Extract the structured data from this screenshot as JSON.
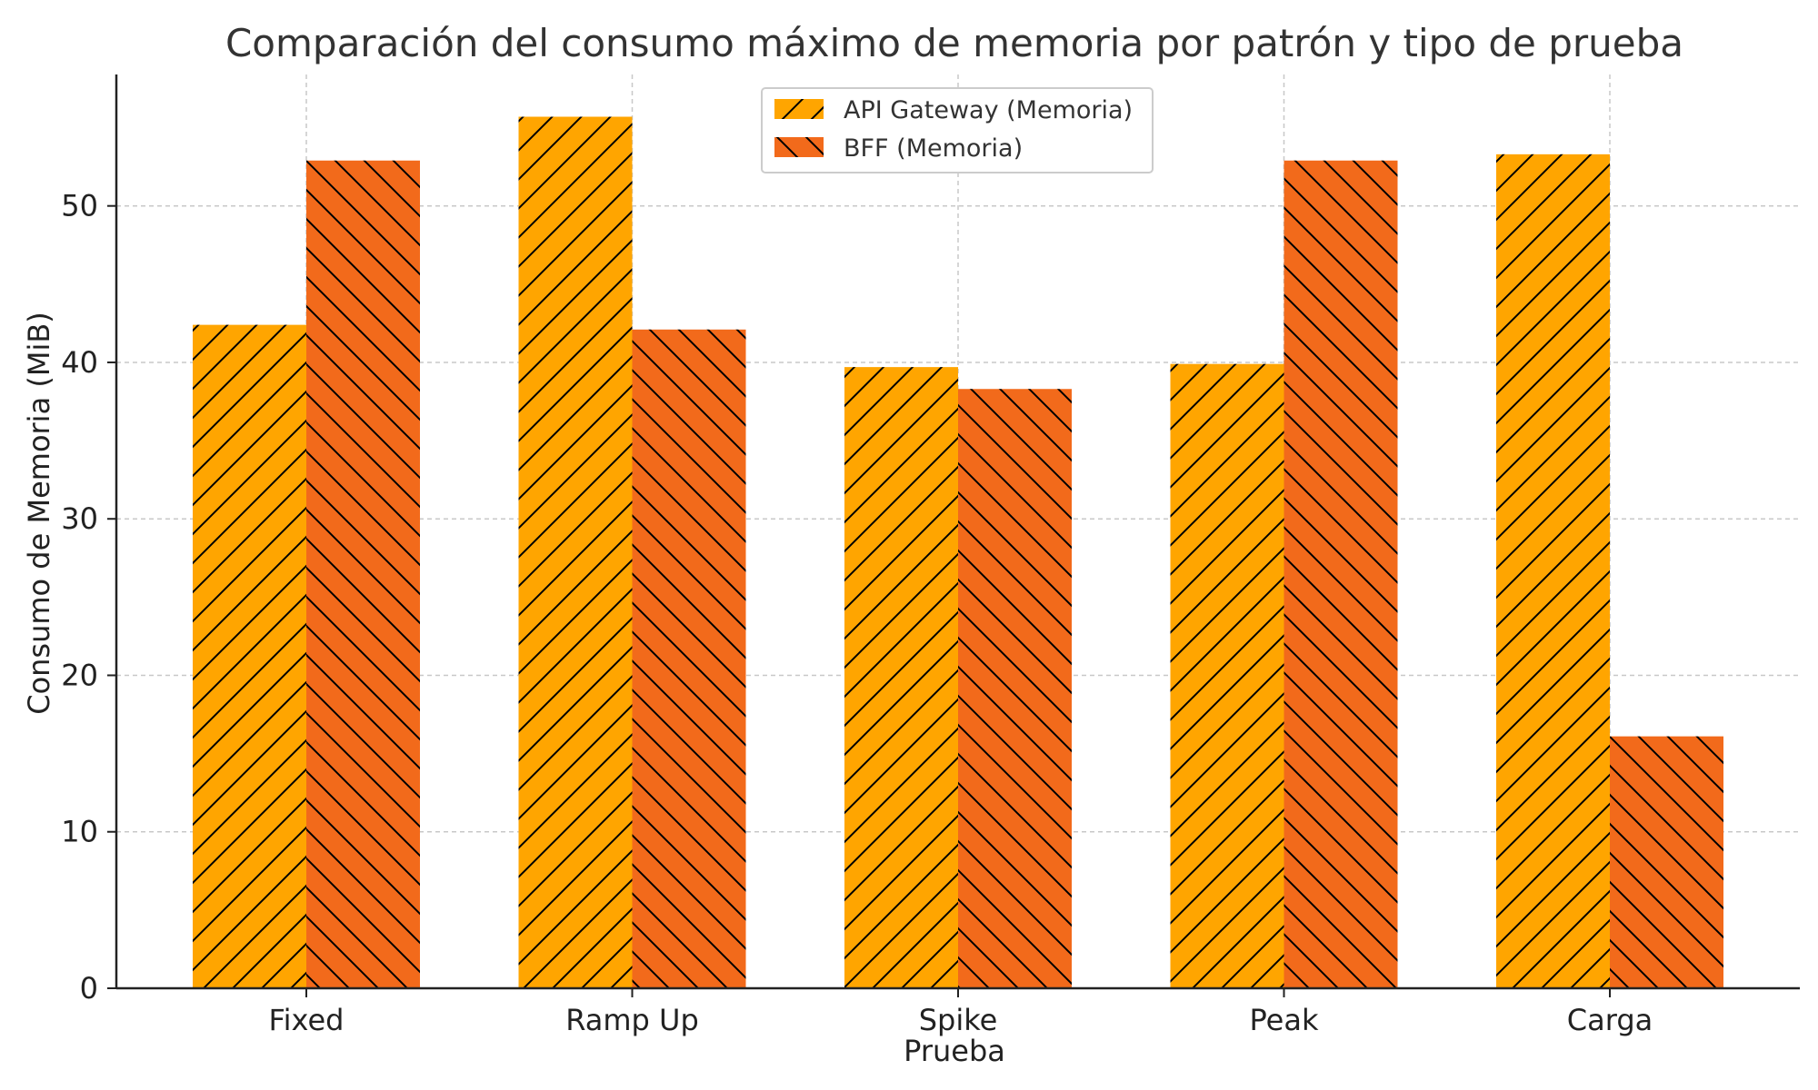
{
  "chart_data": {
    "type": "bar",
    "title": "Comparación del consumo máximo de memoria por patrón y tipo de prueba",
    "xlabel": "Prueba",
    "ylabel": "Consumo de Memoria (MiB)",
    "categories": [
      "Fixed",
      "Ramp Up",
      "Spike",
      "Peak",
      "Carga"
    ],
    "series": [
      {
        "name": "API Gateway (Memoria)",
        "values": [
          42.4,
          55.7,
          39.7,
          39.9,
          53.3
        ],
        "color": "#FFA500",
        "hatch": "/"
      },
      {
        "name": "BFF (Memoria)",
        "values": [
          52.9,
          42.1,
          38.3,
          52.9,
          16.1
        ],
        "color": "#F26A1B",
        "hatch": "\\"
      }
    ],
    "ylim": [
      0,
      58.4
    ],
    "yticks": [
      0,
      10,
      20,
      30,
      40,
      50
    ],
    "grid": true,
    "legend_position": "top-center"
  }
}
